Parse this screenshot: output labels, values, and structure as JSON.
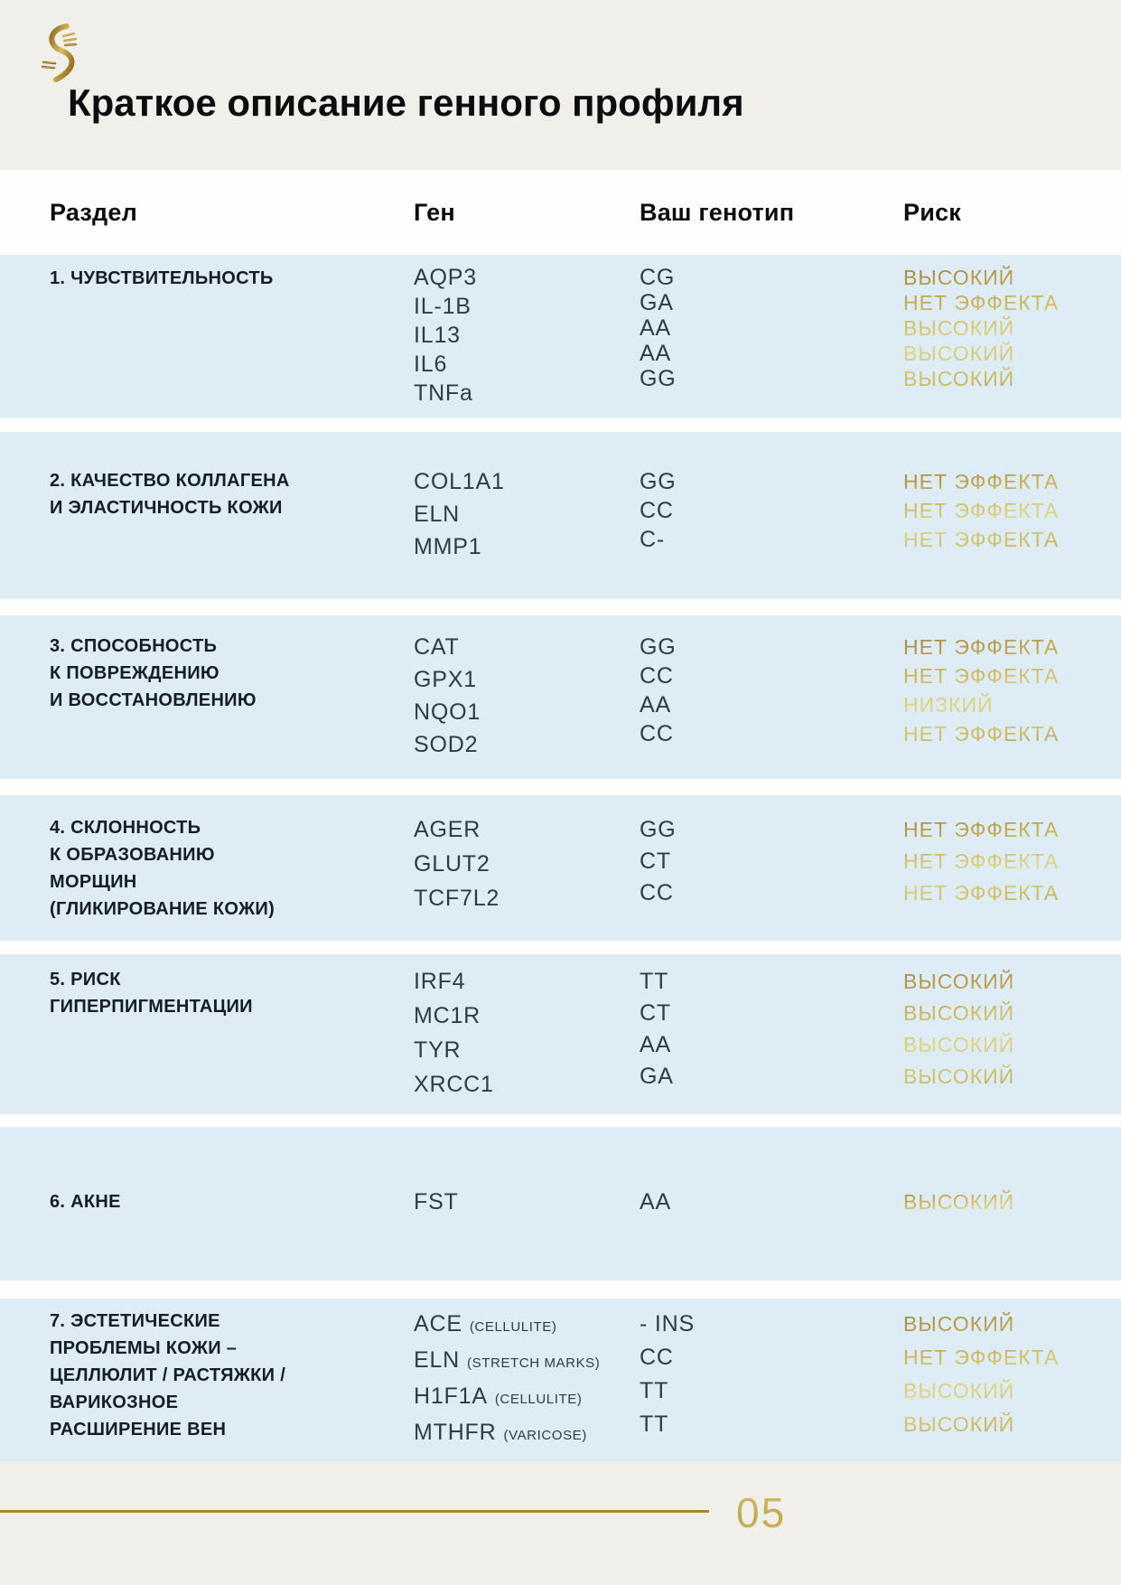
{
  "page": {
    "title": "Краткое описание генного профиля",
    "page_number": "05",
    "logo_icon": "gold-dna-helix"
  },
  "colors": {
    "page_background": "#f0efe9",
    "table_background": "#fdfdfc",
    "section_background": "#ddecf5",
    "accent_gold_dark": "#a6852e",
    "accent_gold_light": "#e0d580",
    "heading_text": "#0c0d0e",
    "body_text": "#2f3b47"
  },
  "table": {
    "columns": [
      "Раздел",
      "Ген",
      "Ваш генотип",
      "Риск"
    ],
    "sections": [
      {
        "title_lines": [
          "1. ЧУВСТВИТЕЛЬНОСТЬ"
        ],
        "rows": [
          {
            "gene": "AQP3",
            "note": "",
            "genotype": "CG",
            "risk": "ВЫСОКИЙ"
          },
          {
            "gene": "IL-1B",
            "note": "",
            "genotype": "GA",
            "risk": "НЕТ ЭФФЕКТА"
          },
          {
            "gene": "IL13",
            "note": "",
            "genotype": "AA",
            "risk": "ВЫСОКИЙ"
          },
          {
            "gene": "IL6",
            "note": "",
            "genotype": "AA",
            "risk": "ВЫСОКИЙ"
          },
          {
            "gene": "TNFa",
            "note": "",
            "genotype": "GG",
            "risk": "ВЫСОКИЙ"
          }
        ]
      },
      {
        "title_lines": [
          "2. КАЧЕСТВО КОЛЛАГЕНА",
          "И ЭЛАСТИЧНОСТЬ КОЖИ"
        ],
        "rows": [
          {
            "gene": "COL1A1",
            "note": "",
            "genotype": "GG",
            "risk": "НЕТ ЭФФЕКТА"
          },
          {
            "gene": "ELN",
            "note": "",
            "genotype": "CC",
            "risk": "НЕТ ЭФФЕКТА"
          },
          {
            "gene": "MMP1",
            "note": "",
            "genotype": "C-",
            "risk": "НЕТ ЭФФЕКТА"
          }
        ]
      },
      {
        "title_lines": [
          "3. СПОСОБНОСТЬ",
          "К ПОВРЕЖДЕНИЮ",
          "И ВОССТАНОВЛЕНИЮ"
        ],
        "rows": [
          {
            "gene": "CAT",
            "note": "",
            "genotype": "GG",
            "risk": "НЕТ ЭФФЕКТА"
          },
          {
            "gene": "GPX1",
            "note": "",
            "genotype": "CC",
            "risk": "НЕТ ЭФФЕКТА"
          },
          {
            "gene": "NQO1",
            "note": "",
            "genotype": "AA",
            "risk": "НИЗКИЙ"
          },
          {
            "gene": "SOD2",
            "note": "",
            "genotype": "CC",
            "risk": "НЕТ ЭФФЕКТА"
          }
        ]
      },
      {
        "title_lines": [
          "4. СКЛОННОСТЬ",
          "К ОБРАЗОВАНИЮ",
          "МОРЩИН",
          "(ГЛИКИРОВАНИЕ КОЖИ)"
        ],
        "rows": [
          {
            "gene": "AGER",
            "note": "",
            "genotype": "GG",
            "risk": "НЕТ ЭФФЕКТА"
          },
          {
            "gene": "GLUT2",
            "note": "",
            "genotype": "CT",
            "risk": "НЕТ ЭФФЕКТА"
          },
          {
            "gene": "TCF7L2",
            "note": "",
            "genotype": "CC",
            "risk": "НЕТ ЭФФЕКТА"
          }
        ]
      },
      {
        "title_lines": [
          "5. РИСК",
          "ГИПЕРПИГМЕНТАЦИИ"
        ],
        "rows": [
          {
            "gene": "IRF4",
            "note": "",
            "genotype": "TT",
            "risk": "ВЫСОКИЙ"
          },
          {
            "gene": "MC1R",
            "note": "",
            "genotype": "CT",
            "risk": "ВЫСОКИЙ"
          },
          {
            "gene": "TYR",
            "note": "",
            "genotype": "AA",
            "risk": "ВЫСОКИЙ"
          },
          {
            "gene": "XRCC1",
            "note": "",
            "genotype": "GA",
            "risk": "ВЫСОКИЙ"
          }
        ]
      },
      {
        "title_lines": [
          "6. АКНЕ"
        ],
        "rows": [
          {
            "gene": "FST",
            "note": "",
            "genotype": "AA",
            "risk": "ВЫСОКИЙ"
          }
        ]
      },
      {
        "title_lines": [
          "7. ЭСТЕТИЧЕСКИЕ",
          "ПРОБЛЕМЫ КОЖИ –",
          "ЦЕЛЛЮЛИТ / РАСТЯЖКИ /",
          "ВАРИКОЗНОЕ",
          "РАСШИРЕНИЕ ВЕН"
        ],
        "rows": [
          {
            "gene": "ACE",
            "note": "(CELLULITE)",
            "genotype": "- INS",
            "risk": "ВЫСОКИЙ"
          },
          {
            "gene": "ELN",
            "note": "(STRETCH MARKS)",
            "genotype": "CC",
            "risk": "НЕТ ЭФФЕКТА"
          },
          {
            "gene": "H1F1A",
            "note": "(CELLULITE)",
            "genotype": "TT",
            "risk": "ВЫСОКИЙ"
          },
          {
            "gene": "MTHFR",
            "note": "(VARICOSE)",
            "genotype": "TT",
            "risk": "ВЫСОКИЙ"
          }
        ]
      }
    ]
  }
}
